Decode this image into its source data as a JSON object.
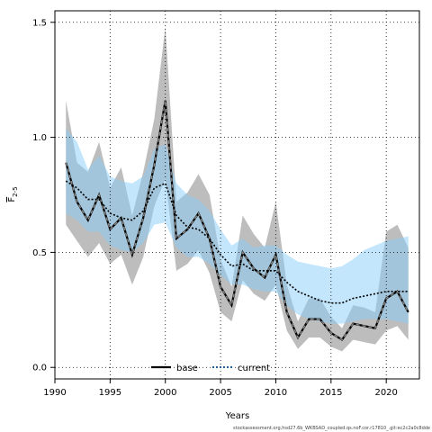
{
  "chart_data": {
    "type": "line",
    "xlabel": "Years",
    "ylabel_main": "F",
    "ylabel_sub": "2-5",
    "xlim": [
      1990,
      2023
    ],
    "ylim": [
      -0.05,
      1.55
    ],
    "xticks": [
      1990,
      1995,
      2000,
      2005,
      2010,
      2015,
      2020
    ],
    "yticks": [
      0.0,
      0.5,
      1.0,
      1.5
    ],
    "ytick_labels": [
      "0.0",
      "0.5",
      "1.0",
      "1.5"
    ],
    "grid": true,
    "legend_position": "bottom-center",
    "x": [
      1991,
      1992,
      1993,
      1994,
      1995,
      1996,
      1997,
      1998,
      1999,
      2000,
      2001,
      2002,
      2003,
      2004,
      2005,
      2006,
      2007,
      2008,
      2009,
      2010,
      2011,
      2012,
      2013,
      2014,
      2015,
      2016,
      2017,
      2018,
      2019,
      2020,
      2021,
      2022
    ],
    "series": [
      {
        "name": "base",
        "color": "#000000",
        "line_style": "dashed-on-grey",
        "band_color": "#999999",
        "values": [
          0.89,
          0.72,
          0.64,
          0.75,
          0.6,
          0.65,
          0.49,
          0.65,
          0.88,
          1.16,
          0.56,
          0.6,
          0.67,
          0.56,
          0.35,
          0.27,
          0.5,
          0.43,
          0.39,
          0.49,
          0.24,
          0.13,
          0.21,
          0.21,
          0.15,
          0.12,
          0.19,
          0.18,
          0.17,
          0.3,
          0.33,
          0.24
        ],
        "lower": [
          0.62,
          0.55,
          0.48,
          0.54,
          0.45,
          0.49,
          0.36,
          0.48,
          0.7,
          0.82,
          0.42,
          0.45,
          0.51,
          0.41,
          0.24,
          0.2,
          0.38,
          0.32,
          0.29,
          0.36,
          0.16,
          0.08,
          0.13,
          0.13,
          0.09,
          0.07,
          0.12,
          0.11,
          0.1,
          0.16,
          0.18,
          0.12
        ],
        "upper": [
          1.16,
          0.89,
          0.85,
          0.98,
          0.78,
          0.87,
          0.66,
          0.85,
          1.08,
          1.48,
          0.72,
          0.76,
          0.84,
          0.75,
          0.47,
          0.35,
          0.66,
          0.58,
          0.52,
          0.72,
          0.36,
          0.2,
          0.3,
          0.3,
          0.22,
          0.17,
          0.27,
          0.26,
          0.24,
          0.59,
          0.62,
          0.52
        ]
      },
      {
        "name": "current",
        "color": "#2060a0",
        "line_style": "dotted",
        "band_color": "#87CEFA",
        "values": [
          0.81,
          0.78,
          0.73,
          0.73,
          0.67,
          0.65,
          0.64,
          0.68,
          0.78,
          0.8,
          0.66,
          0.61,
          0.6,
          0.56,
          0.49,
          0.44,
          0.45,
          0.42,
          0.42,
          0.42,
          0.37,
          0.33,
          0.31,
          0.29,
          0.28,
          0.28,
          0.3,
          0.31,
          0.32,
          0.33,
          0.33,
          0.33
        ],
        "lower": [
          0.67,
          0.64,
          0.59,
          0.59,
          0.53,
          0.51,
          0.5,
          0.54,
          0.62,
          0.63,
          0.52,
          0.48,
          0.48,
          0.45,
          0.4,
          0.36,
          0.36,
          0.34,
          0.33,
          0.33,
          0.27,
          0.23,
          0.21,
          0.2,
          0.19,
          0.19,
          0.2,
          0.21,
          0.21,
          0.21,
          0.2,
          0.19
        ],
        "upper": [
          1.04,
          0.98,
          0.86,
          0.92,
          0.83,
          0.81,
          0.8,
          0.83,
          0.95,
          0.97,
          0.8,
          0.75,
          0.73,
          0.68,
          0.6,
          0.53,
          0.56,
          0.52,
          0.53,
          0.53,
          0.49,
          0.46,
          0.45,
          0.44,
          0.43,
          0.44,
          0.47,
          0.51,
          0.53,
          0.55,
          0.56,
          0.57
        ]
      }
    ]
  },
  "footer": "stockassessment.org,hsd27.6b_WKBSAD_coupled.qs.noF.cor.r17810_.git:ec2c2a0c8dde"
}
